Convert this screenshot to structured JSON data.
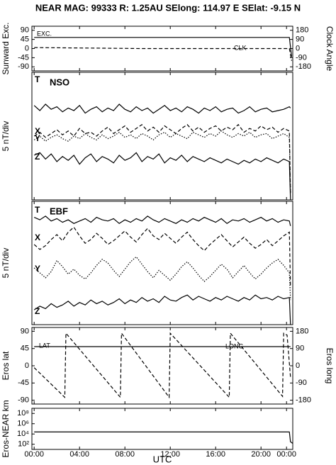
{
  "chart_data": [
    {
      "type": "line",
      "title": "NEAR MAG: 99333  R: 1.25AU  SElong: 114.97 E  SElat:  -9.15 N",
      "ylabel": "Sunward Exc.",
      "y2label": "Clock Angle",
      "ylim": [
        -110,
        110
      ],
      "yticks": [
        90,
        45,
        0,
        -45,
        -90
      ],
      "y2lim": [
        -220,
        220
      ],
      "y2ticks": [
        180,
        90,
        0,
        -90,
        -180
      ],
      "series": [
        {
          "name": "EXC.",
          "color": "#000000",
          "style": "solid",
          "x": [
            0,
            22.5,
            22.7
          ],
          "values": [
            55,
            55,
            -40
          ]
        },
        {
          "name": "CLK",
          "color": "#000000",
          "style": "dashed",
          "axis": "y2",
          "x": [
            0,
            9.5,
            22.5,
            22.7
          ],
          "values": [
            10,
            0,
            0,
            -120
          ]
        }
      ]
    },
    {
      "type": "line",
      "ylabel": "5 nT/div",
      "label": "NSO",
      "ylim": [
        0,
        10
      ],
      "x": [
        0,
        0.5,
        1,
        1.5,
        2,
        2.5,
        3,
        3.5,
        4,
        4.5,
        5,
        5.5,
        6,
        6.5,
        7,
        7.5,
        8,
        8.5,
        9,
        9.5,
        10,
        10.5,
        11,
        11.5,
        12,
        12.5,
        13,
        13.5,
        14,
        14.5,
        15,
        15.5,
        16,
        16.5,
        17,
        17.5,
        18,
        18.5,
        19,
        19.5,
        20,
        20.5,
        21,
        21.5,
        22,
        22.5,
        22.6
      ],
      "series": [
        {
          "name": "T",
          "color": "#000000",
          "style": "solid",
          "values": [
            7.4,
            7.0,
            7.5,
            7.1,
            7.3,
            6.9,
            7.2,
            7.0,
            7.4,
            6.8,
            7.1,
            7.3,
            6.9,
            7.2,
            7.0,
            7.5,
            7.1,
            6.9,
            7.3,
            7.0,
            7.2,
            6.8,
            7.1,
            7.4,
            7.0,
            7.2,
            6.9,
            7.3,
            7.1,
            6.8,
            7.2,
            7.0,
            7.3,
            6.9,
            7.1,
            7.2,
            6.8,
            7.0,
            7.3,
            6.9,
            7.1,
            7.2,
            6.9,
            7.0,
            7.1,
            7.3,
            7.2
          ]
        },
        {
          "name": "X",
          "color": "#000000",
          "style": "dashed",
          "values": [
            5.0,
            5.3,
            4.9,
            5.2,
            5.5,
            5.1,
            5.4,
            5.0,
            5.6,
            5.2,
            5.3,
            5.0,
            5.4,
            5.7,
            5.2,
            5.5,
            5.8,
            5.3,
            5.6,
            5.9,
            5.4,
            5.7,
            5.3,
            5.8,
            5.5,
            5.2,
            5.6,
            5.9,
            5.4,
            5.7,
            5.3,
            5.6,
            5.8,
            5.4,
            5.7,
            5.5,
            5.9,
            5.3,
            5.6,
            5.4,
            5.8,
            5.5,
            5.7,
            5.3,
            5.6,
            5.4,
            0.5
          ]
        },
        {
          "name": "Y",
          "color": "#000000",
          "style": "dotted",
          "values": [
            4.7,
            5.0,
            4.6,
            4.9,
            5.1,
            4.8,
            4.6,
            5.0,
            4.8,
            5.2,
            4.9,
            4.7,
            5.1,
            4.8,
            5.0,
            5.3,
            4.9,
            5.1,
            4.8,
            5.2,
            5.0,
            4.7,
            5.1,
            5.3,
            4.9,
            5.2,
            5.0,
            4.8,
            5.3,
            5.1,
            4.9,
            5.2,
            5.0,
            5.4,
            5.1,
            4.9,
            5.2,
            5.0,
            5.3,
            4.9,
            5.1,
            5.2,
            4.8,
            5.0,
            5.2,
            4.9,
            0.5
          ]
        },
        {
          "name": "Z",
          "color": "#000000",
          "style": "solid",
          "values": [
            3.5,
            3.7,
            3.2,
            3.6,
            3.0,
            3.4,
            3.1,
            3.5,
            2.8,
            3.3,
            3.6,
            3.0,
            3.4,
            3.2,
            2.9,
            3.5,
            3.1,
            3.3,
            3.7,
            3.0,
            3.4,
            3.2,
            3.6,
            2.9,
            3.3,
            3.1,
            3.5,
            3.0,
            3.4,
            3.2,
            3.0,
            3.3,
            3.1,
            2.9,
            3.2,
            3.0,
            2.8,
            3.1,
            2.9,
            3.2,
            3.0,
            3.3,
            3.1,
            2.9,
            3.2,
            3.0,
            0.0
          ]
        }
      ]
    },
    {
      "type": "line",
      "ylabel": "5 nT/div",
      "label": "EBF",
      "ylim": [
        0,
        10
      ],
      "x": [
        0,
        0.5,
        1,
        1.5,
        2,
        2.5,
        3,
        3.5,
        4,
        4.5,
        5,
        5.5,
        6,
        6.5,
        7,
        7.5,
        8,
        8.5,
        9,
        9.5,
        10,
        10.5,
        11,
        11.5,
        12,
        12.5,
        13,
        13.5,
        14,
        14.5,
        15,
        15.5,
        16,
        16.5,
        17,
        17.5,
        18,
        18.5,
        19,
        19.5,
        20,
        20.5,
        21,
        21.5,
        22,
        22.5,
        22.6
      ],
      "series": [
        {
          "name": "T",
          "color": "#000000",
          "style": "solid",
          "values": [
            8.7,
            8.5,
            8.8,
            8.4,
            8.6,
            8.3,
            8.5,
            8.2,
            8.4,
            8.6,
            8.3,
            8.7,
            8.5,
            8.4,
            8.6,
            8.2,
            8.5,
            8.3,
            8.6,
            8.4,
            8.8,
            8.5,
            8.3,
            8.6,
            8.4,
            8.2,
            8.5,
            8.3,
            8.6,
            8.4,
            8.7,
            8.5,
            8.3,
            8.6,
            8.2,
            8.5,
            8.4,
            8.6,
            8.3,
            8.5,
            8.7,
            8.4,
            8.6,
            8.3,
            8.5,
            8.4,
            8.0
          ]
        },
        {
          "name": "X",
          "color": "#000000",
          "style": "dashed",
          "values": [
            6.5,
            6.1,
            6.4,
            6.9,
            7.3,
            6.8,
            7.5,
            7.9,
            7.2,
            6.6,
            6.9,
            7.4,
            7.0,
            6.5,
            6.8,
            7.2,
            7.6,
            7.1,
            6.7,
            7.3,
            7.8,
            7.2,
            6.9,
            7.4,
            7.0,
            6.6,
            7.1,
            7.5,
            6.9,
            6.4,
            6.0,
            6.5,
            6.9,
            7.3,
            6.8,
            6.3,
            6.7,
            7.1,
            6.6,
            6.2,
            6.5,
            6.9,
            6.4,
            6.8,
            7.2,
            7.5,
            3.0
          ]
        },
        {
          "name": "Y",
          "color": "#000000",
          "style": "dotted",
          "values": [
            4.6,
            4.2,
            3.8,
            4.3,
            5.2,
            4.7,
            4.1,
            4.5,
            4.0,
            3.7,
            4.2,
            4.8,
            5.3,
            5.0,
            4.4,
            3.9,
            4.5,
            5.1,
            5.5,
            4.9,
            4.3,
            3.8,
            4.4,
            4.0,
            3.6,
            4.1,
            4.7,
            5.1,
            4.6,
            4.0,
            3.5,
            3.9,
            4.4,
            4.9,
            4.5,
            3.8,
            4.3,
            4.8,
            4.2,
            3.7,
            4.1,
            4.6,
            5.0,
            5.3,
            4.8,
            4.2,
            2.0
          ]
        },
        {
          "name": "Z",
          "color": "#000000",
          "style": "solid",
          "values": [
            1.2,
            1.5,
            1.3,
            1.7,
            1.4,
            1.6,
            1.9,
            1.5,
            1.8,
            1.6,
            2.0,
            1.7,
            1.9,
            1.6,
            1.8,
            2.1,
            1.7,
            2.0,
            1.8,
            2.2,
            1.9,
            2.1,
            1.8,
            2.3,
            2.0,
            1.9,
            2.2,
            2.4,
            2.0,
            2.3,
            2.1,
            1.9,
            2.2,
            2.0,
            2.3,
            2.1,
            1.9,
            2.2,
            2.0,
            2.4,
            2.1,
            2.2,
            2.0,
            2.3,
            2.1,
            2.2,
            0.0
          ]
        }
      ]
    },
    {
      "type": "line",
      "ylabel": "Eros lat",
      "y2label": "Eros long",
      "ylim": [
        -100,
        100
      ],
      "yticks": [
        90,
        45,
        0,
        -45,
        -90
      ],
      "y2lim": [
        -200,
        200
      ],
      "y2ticks": [
        180,
        90,
        0,
        -90,
        -180
      ],
      "series": [
        {
          "name": "LAT",
          "color": "#000000",
          "style": "solid",
          "x": [
            0,
            22.6
          ],
          "values": [
            50,
            50
          ]
        },
        {
          "name": "LONG",
          "color": "#000000",
          "style": "dashed",
          "axis": "y2",
          "x": [
            0,
            2.7,
            2.8,
            7.6,
            7.7,
            11.9,
            12,
            17.2,
            17.3,
            21.9,
            22,
            22.3,
            22.6
          ],
          "values": [
            -10,
            -165,
            170,
            -165,
            170,
            -165,
            170,
            -165,
            170,
            -160,
            170,
            160,
            -60
          ]
        }
      ]
    },
    {
      "type": "line",
      "ylabel": "Eros-NEAR km",
      "log": true,
      "xlabel": "UTC",
      "ylim": [
        10,
        1000000000
      ],
      "yticks": [
        {
          "value": 100,
          "label": "10²"
        },
        {
          "value": 10000,
          "label": "10⁴"
        },
        {
          "value": 1000000,
          "label": "10⁶"
        },
        {
          "value": 100000000,
          "label": "10⁸"
        }
      ],
      "xlim": [
        -0.2,
        22.8
      ],
      "xticks": [
        {
          "value": 0,
          "label": "00:00"
        },
        {
          "value": 4,
          "label": "04:00"
        },
        {
          "value": 8,
          "label": "08:00"
        },
        {
          "value": 12,
          "label": "12:00"
        },
        {
          "value": 16,
          "label": "16:00"
        },
        {
          "value": 20,
          "label": "20:00"
        },
        {
          "value": 22.25,
          "label": "00:00"
        }
      ],
      "series": [
        {
          "color": "#000000",
          "style": "solid",
          "x": [
            0,
            22.5,
            22.6,
            22.8
          ],
          "values": [
            25000,
            25000,
            300,
            150
          ]
        }
      ]
    }
  ]
}
